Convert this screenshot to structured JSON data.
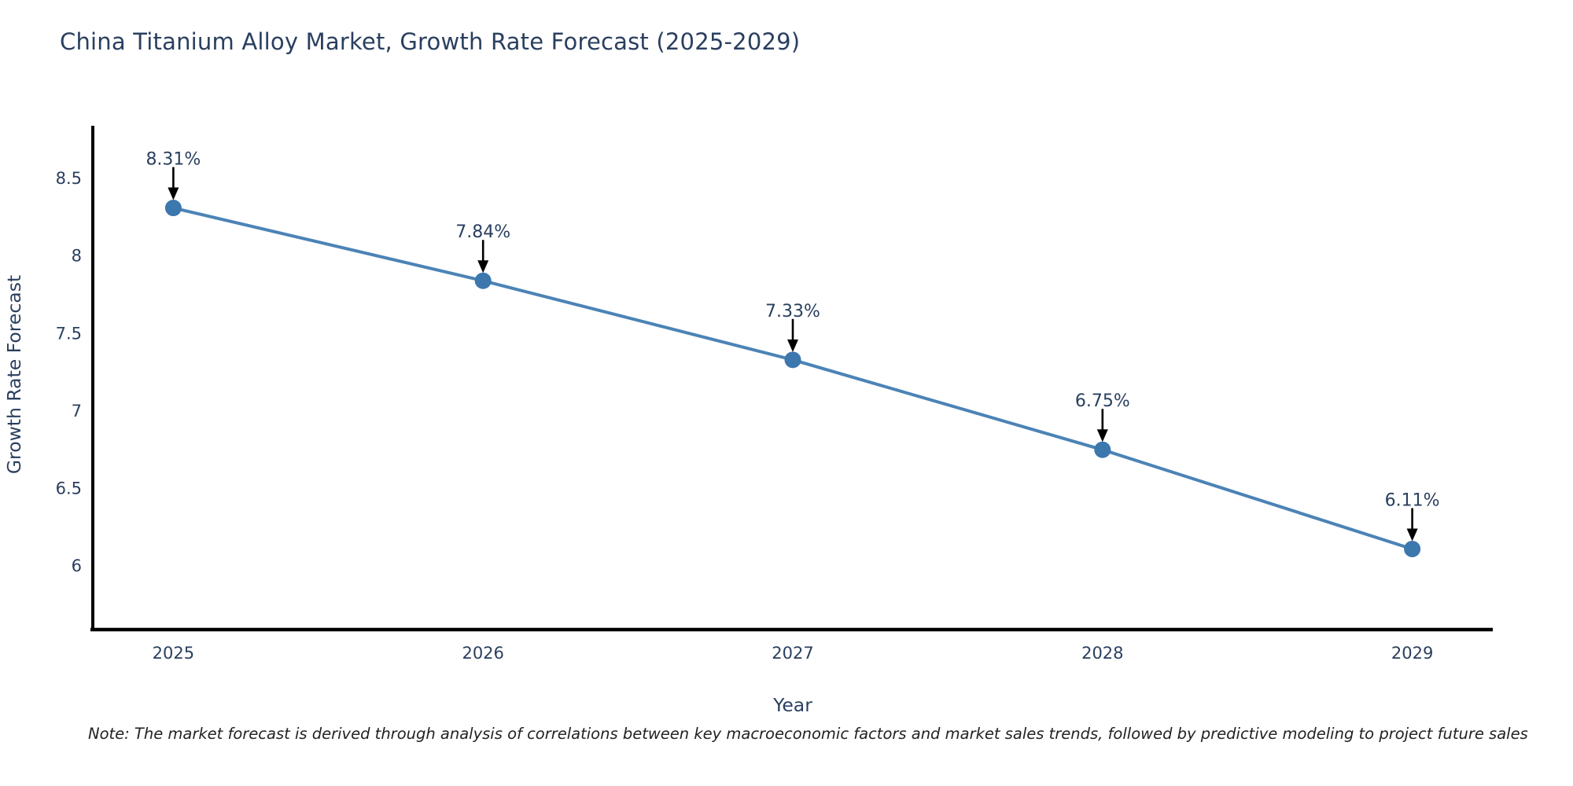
{
  "header": {
    "title": "China Titanium Alloy Market, Growth Rate Forecast (2025-2029)"
  },
  "footer": {
    "note": "Note: The market forecast is derived through analysis of correlations between key macroeconomic factors and market sales trends, followed by predictive modeling to project future sales"
  },
  "chart_data": {
    "type": "line",
    "title": "China Titanium Alloy Market, Growth Rate Forecast (2025-2029)",
    "xlabel": "Year",
    "ylabel": "Growth Rate Forecast",
    "x": [
      2025,
      2026,
      2027,
      2028,
      2029
    ],
    "values": [
      8.31,
      7.84,
      7.33,
      6.75,
      6.11
    ],
    "point_labels": [
      "8.31%",
      "7.84%",
      "7.33%",
      "6.75%",
      "6.11%"
    ],
    "x_tick_labels": [
      "2025",
      "2026",
      "2027",
      "2028",
      "2029"
    ],
    "y_ticks": [
      6,
      6.5,
      7,
      7.5,
      8,
      8.5
    ],
    "y_tick_labels": [
      "6",
      "6.5",
      "7",
      "7.5",
      "8",
      "8.5"
    ],
    "xlim": [
      2024.74,
      2029.26
    ],
    "ylim": [
      5.59,
      8.84
    ],
    "grid": false,
    "legend": "none",
    "annotation_style": "arrow-down-to-point",
    "colors": {
      "line": "#4c83b6",
      "marker": "#3c77ae",
      "axis": "#000000",
      "text": "#2a3f5f",
      "arrow": "#000000",
      "note": "#222222",
      "background": "#ffffff"
    }
  }
}
